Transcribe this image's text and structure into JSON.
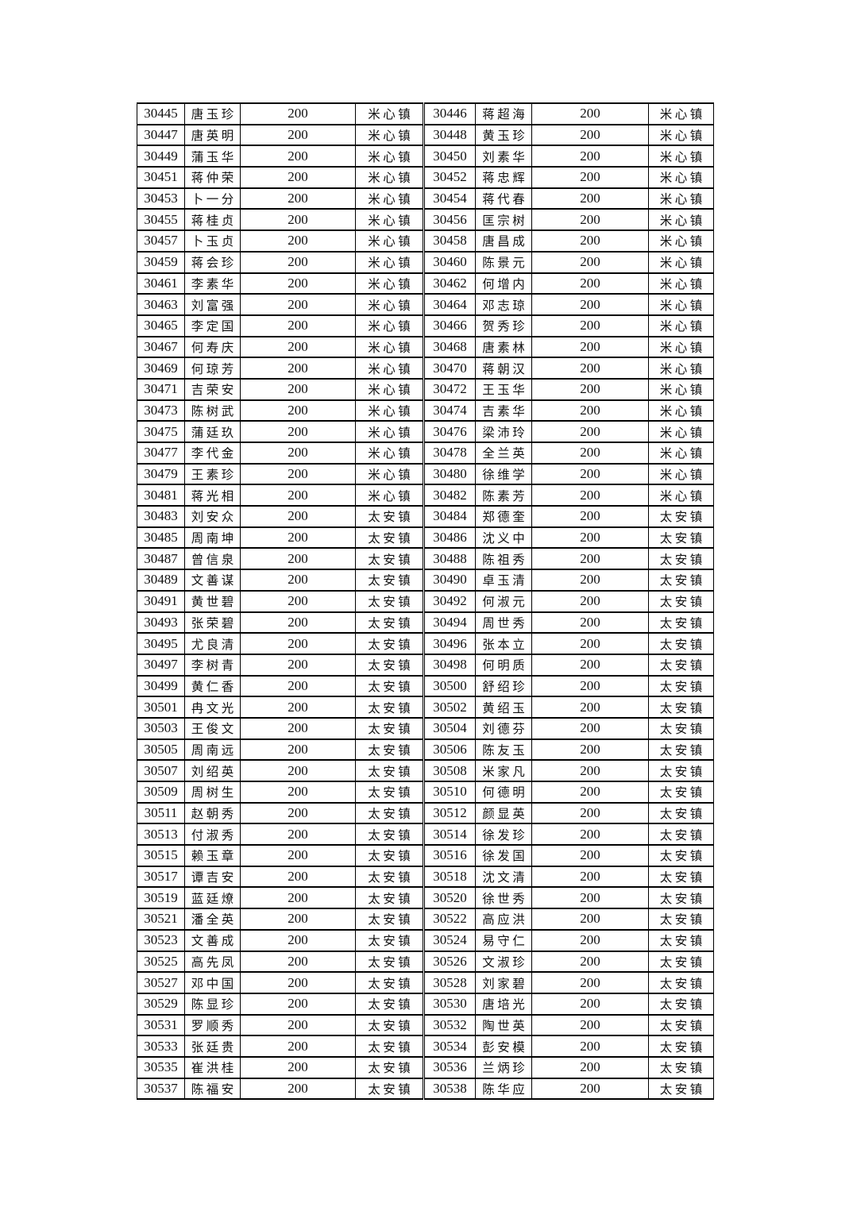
{
  "page": {
    "background_color": "#ffffff",
    "text_color": "#111111",
    "border_color": "#000000"
  },
  "table": {
    "row_count": 47,
    "amount_value": "200",
    "town_values": [
      "米心镇",
      "太安镇"
    ],
    "rows": [
      [
        "30445",
        "唐玉珍",
        "200",
        "米心镇",
        "30446",
        "蒋超海",
        "200",
        "米心镇"
      ],
      [
        "30447",
        "唐英明",
        "200",
        "米心镇",
        "30448",
        "黄玉珍",
        "200",
        "米心镇"
      ],
      [
        "30449",
        "蒲玉华",
        "200",
        "米心镇",
        "30450",
        "刘素华",
        "200",
        "米心镇"
      ],
      [
        "30451",
        "蒋仲荣",
        "200",
        "米心镇",
        "30452",
        "蒋忠辉",
        "200",
        "米心镇"
      ],
      [
        "30453",
        "卜一分",
        "200",
        "米心镇",
        "30454",
        "蒋代春",
        "200",
        "米心镇"
      ],
      [
        "30455",
        "蒋桂贞",
        "200",
        "米心镇",
        "30456",
        "匡宗树",
        "200",
        "米心镇"
      ],
      [
        "30457",
        "卜玉贞",
        "200",
        "米心镇",
        "30458",
        "唐昌成",
        "200",
        "米心镇"
      ],
      [
        "30459",
        "蒋会珍",
        "200",
        "米心镇",
        "30460",
        "陈景元",
        "200",
        "米心镇"
      ],
      [
        "30461",
        "李素华",
        "200",
        "米心镇",
        "30462",
        "何增内",
        "200",
        "米心镇"
      ],
      [
        "30463",
        "刘富强",
        "200",
        "米心镇",
        "30464",
        "邓志琼",
        "200",
        "米心镇"
      ],
      [
        "30465",
        "李定国",
        "200",
        "米心镇",
        "30466",
        "贺秀珍",
        "200",
        "米心镇"
      ],
      [
        "30467",
        "何寿庆",
        "200",
        "米心镇",
        "30468",
        "唐素林",
        "200",
        "米心镇"
      ],
      [
        "30469",
        "何琼芳",
        "200",
        "米心镇",
        "30470",
        "蒋朝汉",
        "200",
        "米心镇"
      ],
      [
        "30471",
        "吉荣安",
        "200",
        "米心镇",
        "30472",
        "王玉华",
        "200",
        "米心镇"
      ],
      [
        "30473",
        "陈树武",
        "200",
        "米心镇",
        "30474",
        "吉素华",
        "200",
        "米心镇"
      ],
      [
        "30475",
        "蒲廷玖",
        "200",
        "米心镇",
        "30476",
        "梁沛玲",
        "200",
        "米心镇"
      ],
      [
        "30477",
        "李代金",
        "200",
        "米心镇",
        "30478",
        "全兰英",
        "200",
        "米心镇"
      ],
      [
        "30479",
        "王素珍",
        "200",
        "米心镇",
        "30480",
        "徐维学",
        "200",
        "米心镇"
      ],
      [
        "30481",
        "蒋光相",
        "200",
        "米心镇",
        "30482",
        "陈素芳",
        "200",
        "米心镇"
      ],
      [
        "30483",
        "刘安众",
        "200",
        "太安镇",
        "30484",
        "郑德奎",
        "200",
        "太安镇"
      ],
      [
        "30485",
        "周南坤",
        "200",
        "太安镇",
        "30486",
        "沈义中",
        "200",
        "太安镇"
      ],
      [
        "30487",
        "曾信泉",
        "200",
        "太安镇",
        "30488",
        "陈祖秀",
        "200",
        "太安镇"
      ],
      [
        "30489",
        "文善谋",
        "200",
        "太安镇",
        "30490",
        "卓玉清",
        "200",
        "太安镇"
      ],
      [
        "30491",
        "黄世碧",
        "200",
        "太安镇",
        "30492",
        "何淑元",
        "200",
        "太安镇"
      ],
      [
        "30493",
        "张荣碧",
        "200",
        "太安镇",
        "30494",
        "周世秀",
        "200",
        "太安镇"
      ],
      [
        "30495",
        "尤良清",
        "200",
        "太安镇",
        "30496",
        "张本立",
        "200",
        "太安镇"
      ],
      [
        "30497",
        "李树青",
        "200",
        "太安镇",
        "30498",
        "何明质",
        "200",
        "太安镇"
      ],
      [
        "30499",
        "黄仁香",
        "200",
        "太安镇",
        "30500",
        "舒绍珍",
        "200",
        "太安镇"
      ],
      [
        "30501",
        "冉文光",
        "200",
        "太安镇",
        "30502",
        "黄绍玉",
        "200",
        "太安镇"
      ],
      [
        "30503",
        "王俊文",
        "200",
        "太安镇",
        "30504",
        "刘德芬",
        "200",
        "太安镇"
      ],
      [
        "30505",
        "周南远",
        "200",
        "太安镇",
        "30506",
        "陈友玉",
        "200",
        "太安镇"
      ],
      [
        "30507",
        "刘绍英",
        "200",
        "太安镇",
        "30508",
        "米家凡",
        "200",
        "太安镇"
      ],
      [
        "30509",
        "周树生",
        "200",
        "太安镇",
        "30510",
        "何德明",
        "200",
        "太安镇"
      ],
      [
        "30511",
        "赵朝秀",
        "200",
        "太安镇",
        "30512",
        "颜显英",
        "200",
        "太安镇"
      ],
      [
        "30513",
        "付淑秀",
        "200",
        "太安镇",
        "30514",
        "徐发珍",
        "200",
        "太安镇"
      ],
      [
        "30515",
        "赖玉章",
        "200",
        "太安镇",
        "30516",
        "徐发国",
        "200",
        "太安镇"
      ],
      [
        "30517",
        "谭吉安",
        "200",
        "太安镇",
        "30518",
        "沈文清",
        "200",
        "太安镇"
      ],
      [
        "30519",
        "蓝廷燎",
        "200",
        "太安镇",
        "30520",
        "徐世秀",
        "200",
        "太安镇"
      ],
      [
        "30521",
        "潘全英",
        "200",
        "太安镇",
        "30522",
        "高应洪",
        "200",
        "太安镇"
      ],
      [
        "30523",
        "文善成",
        "200",
        "太安镇",
        "30524",
        "易守仁",
        "200",
        "太安镇"
      ],
      [
        "30525",
        "高先凤",
        "200",
        "太安镇",
        "30526",
        "文淑珍",
        "200",
        "太安镇"
      ],
      [
        "30527",
        "邓中国",
        "200",
        "太安镇",
        "30528",
        "刘家碧",
        "200",
        "太安镇"
      ],
      [
        "30529",
        "陈显珍",
        "200",
        "太安镇",
        "30530",
        "唐培光",
        "200",
        "太安镇"
      ],
      [
        "30531",
        "罗顺秀",
        "200",
        "太安镇",
        "30532",
        "陶世英",
        "200",
        "太安镇"
      ],
      [
        "30533",
        "张廷贵",
        "200",
        "太安镇",
        "30534",
        "彭安模",
        "200",
        "太安镇"
      ],
      [
        "30535",
        "崔洪桂",
        "200",
        "太安镇",
        "30536",
        "兰炳珍",
        "200",
        "太安镇"
      ],
      [
        "30537",
        "陈福安",
        "200",
        "太安镇",
        "30538",
        "陈华应",
        "200",
        "太安镇"
      ]
    ]
  }
}
